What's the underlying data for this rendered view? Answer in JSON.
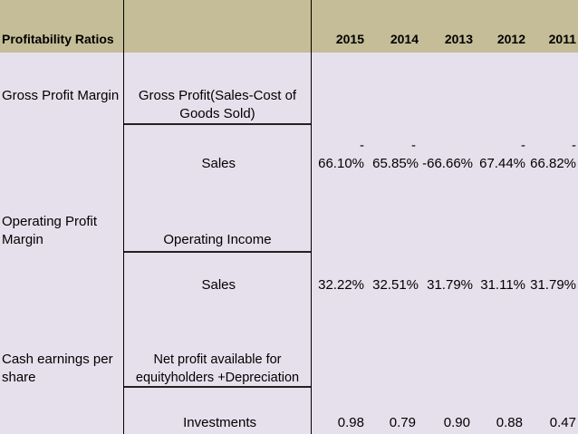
{
  "header": {
    "title": "Profitability Ratios",
    "years": [
      "2015",
      "2014",
      "2013",
      "2012",
      "2011"
    ]
  },
  "rows": {
    "gross": {
      "label": "Gross Profit Margin",
      "numerator": "Gross Profit(Sales-Cost of Goods Sold)",
      "denominator": "Sales",
      "dash_marks": [
        "-",
        "-",
        "",
        "-",
        "-"
      ],
      "values": [
        "66.10%",
        "65.85%",
        "-66.66%",
        "67.44%",
        "66.82%"
      ]
    },
    "operating": {
      "label": "Operating Profit Margin",
      "numerator": "Operating Income",
      "denominator": "Sales",
      "values": [
        "32.22%",
        "32.51%",
        "31.79%",
        "31.11%",
        "31.79%"
      ]
    },
    "cash": {
      "label": "Cash earnings per share",
      "numerator": "Net profit available for equityholders +Depreciation",
      "denominator": "Investments",
      "values": [
        "0.98",
        "0.79",
        "0.90",
        "0.88",
        "0.47"
      ]
    }
  },
  "colors": {
    "header_band": "#c4bd97",
    "background": "#e6e0ec",
    "gridline": "#000000"
  }
}
